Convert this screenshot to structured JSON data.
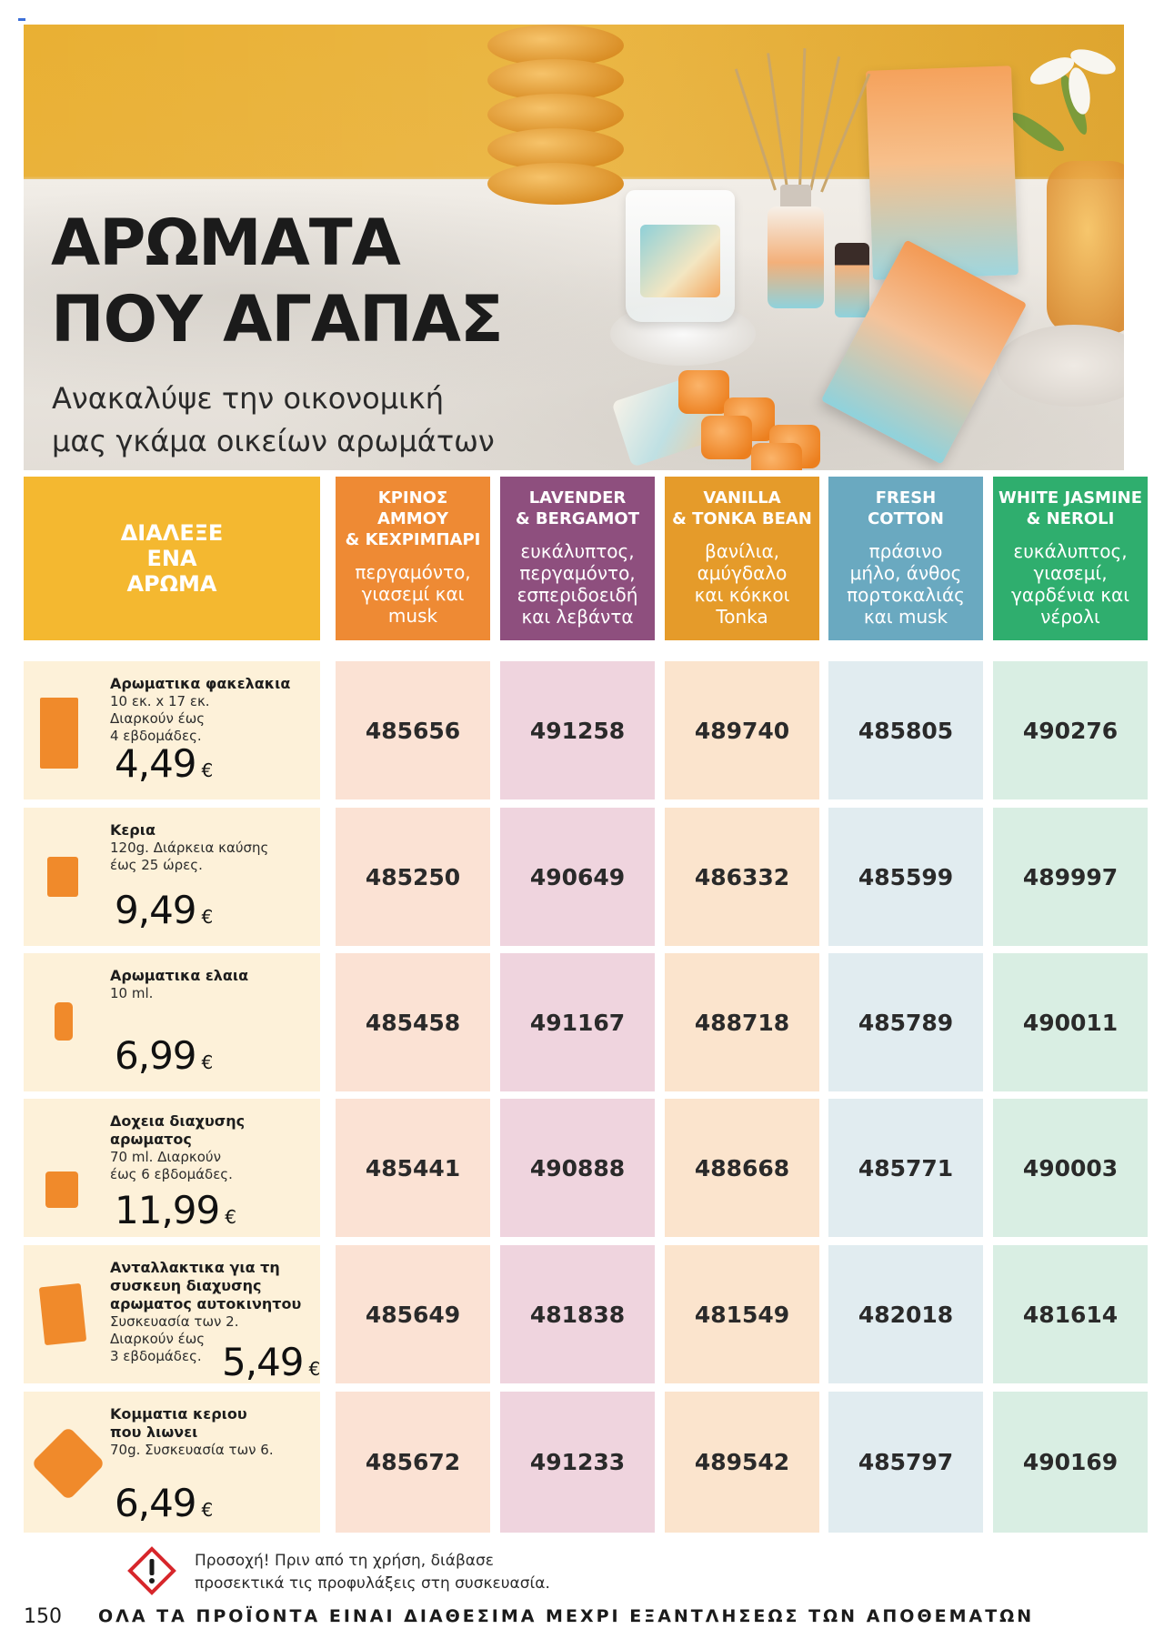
{
  "hero": {
    "title_line1": "ΑΡΩΜΑΤΑ",
    "title_line2": "ΠΟΥ ΑΓΑΠΑΣ",
    "subtitle_line1": "Ανακαλύψε την οικονομική",
    "subtitle_line2": "μας γκάμα οικείων αρωμάτων"
  },
  "table": {
    "choose_label": [
      "ΔΙΑΛΕΞΕ",
      "ΕΝΑ",
      "ΑΡΩΜΑ"
    ],
    "scents": [
      {
        "name": [
          "ΚΡΙΝΟΣ",
          "ΑΜΜΟΥ",
          "& ΚΕΧΡΙΜΠΑΡΙ"
        ],
        "notes": [
          "περγαμόντο,",
          "γιασεμί και",
          "musk"
        ],
        "color": "#ee8a34",
        "cell_color": "#fbe2d4"
      },
      {
        "name": [
          "LAVENDER",
          "& BERGAMOT"
        ],
        "notes": [
          "ευκάλυπτος,",
          "περγαμόντο,",
          "εσπεριδοειδή",
          "και λεβάντα"
        ],
        "color": "#8e4f7e",
        "cell_color": "#efd4de"
      },
      {
        "name": [
          "VANILLA",
          "& TONKA BEAN"
        ],
        "notes": [
          "βανίλια,",
          "αμύγδαλο",
          "και κόκκοι",
          "Tonka"
        ],
        "color": "#e59b2a",
        "cell_color": "#fbe4cd"
      },
      {
        "name": [
          "FRESH",
          "COTTON"
        ],
        "notes": [
          "πράσινο",
          "μήλο, άνθος",
          "πορτοκαλιάς",
          "και musk"
        ],
        "color": "#6aa9c0",
        "cell_color": "#e1ecf0"
      },
      {
        "name": [
          "WHITE JASMINE",
          "& NEROLI"
        ],
        "notes": [
          "ευκάλυπτος,",
          "γιασεμί,",
          "γαρδένια και",
          "νέρολι"
        ],
        "color": "#2fae6e",
        "cell_color": "#d9eee3"
      }
    ],
    "rows": [
      {
        "product": [
          "Αρωματικα φακελακια"
        ],
        "desc": [
          "10 εκ. x 17 εκ.",
          "Διαρκούν έως",
          "4 εβδομάδες."
        ],
        "price": "4,49",
        "currency": "€",
        "icon": "sachet-icon",
        "codes": [
          "485656",
          "491258",
          "489740",
          "485805",
          "490276"
        ]
      },
      {
        "product": [
          "Κερια"
        ],
        "desc": [
          "120g. Διάρκεια καύσης",
          "έως 25 ώρες."
        ],
        "price": "9,49",
        "currency": "€",
        "icon": "candle-icon",
        "codes": [
          "485250",
          "490649",
          "486332",
          "485599",
          "489997"
        ]
      },
      {
        "product": [
          "Αρωματικα ελαια"
        ],
        "desc": [
          "10 ml."
        ],
        "price": "6,99",
        "currency": "€",
        "icon": "oil-bottle-icon",
        "codes": [
          "485458",
          "491167",
          "488718",
          "485789",
          "490011"
        ]
      },
      {
        "product": [
          "Δοχεια διαχυσης",
          "αρωματος"
        ],
        "desc": [
          "70 ml. Διαρκούν",
          "έως 6 εβδομάδες."
        ],
        "price": "11,99",
        "currency": "€",
        "icon": "reed-diffuser-icon",
        "codes": [
          "485441",
          "490888",
          "488668",
          "485771",
          "490003"
        ]
      },
      {
        "product": [
          "Ανταλλακτικα για τη",
          "συσκευη διαχυσης",
          "αρωματος αυτοκινητου"
        ],
        "desc": [
          "Συσκευασία των 2.",
          "Διαρκούν έως",
          "3 εβδομάδες."
        ],
        "price": "5,49",
        "currency": "€",
        "icon": "car-refill-icon",
        "codes": [
          "485649",
          "481838",
          "481549",
          "482018",
          "481614"
        ]
      },
      {
        "product": [
          "Κομματια κεριου",
          "που λιωνει"
        ],
        "desc": [
          "70g. Συσκευασία των 6."
        ],
        "price": "6,49",
        "currency": "€",
        "icon": "wax-melt-icon",
        "codes": [
          "485672",
          "491233",
          "489542",
          "485797",
          "490169"
        ]
      }
    ]
  },
  "footer": {
    "warning_line1": "Προσοχή! Πριν από τη χρήση, διάβασε",
    "warning_line2": "προσεκτικά τις προφυλάξεις στη συσκευασία.",
    "page_number": "150",
    "note": "ΟΛΑ ΤΑ ΠΡΟΪΟΝΤΑ ΕΙΝΑΙ ΔΙΑΘΕΣΙΜΑ ΜΕΧΡΙ ΕΞΑΝΤΛΗΣΕΩΣ ΤΩΝ ΑΠΟΘΕΜΑΤΩΝ"
  }
}
